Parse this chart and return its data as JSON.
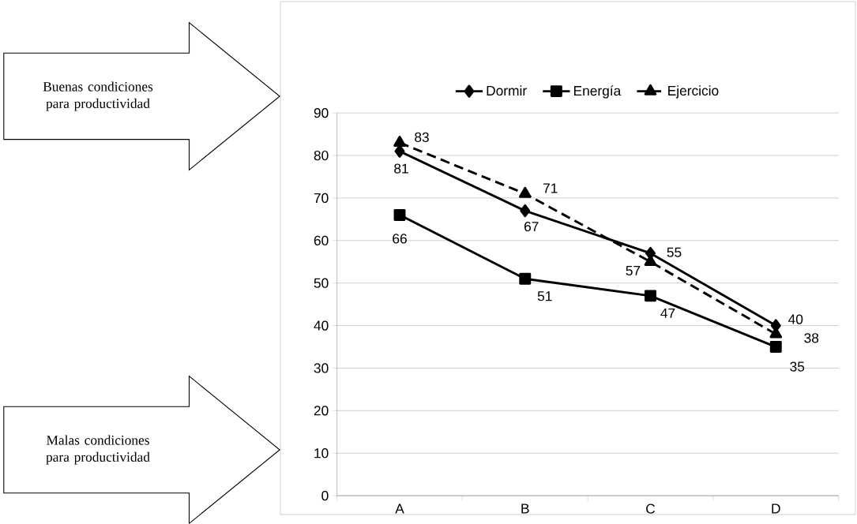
{
  "chart_data": {
    "type": "line",
    "categories": [
      "A",
      "B",
      "C",
      "D"
    ],
    "series": [
      {
        "name": "Dormir",
        "color": "#000000",
        "values": [
          81,
          67,
          57,
          40
        ],
        "marker": "diamond",
        "line_style": "solid"
      },
      {
        "name": "Energía",
        "color": "#000000",
        "values": [
          66,
          51,
          47,
          35
        ],
        "marker": "square",
        "line_style": "solid"
      },
      {
        "name": "Ejercicio",
        "color": "#000000",
        "values": [
          83,
          71,
          55,
          38
        ],
        "marker": "triangle",
        "line_style": "dashed"
      }
    ],
    "ylim": [
      0,
      90
    ],
    "yticks": [
      0,
      10,
      20,
      30,
      40,
      50,
      60,
      70,
      80,
      90
    ],
    "grid": "y",
    "legend": "top",
    "data_labels": true,
    "annotations": [
      "Buenas condiciones para productividad",
      "Malas condiciones para productividad"
    ]
  }
}
